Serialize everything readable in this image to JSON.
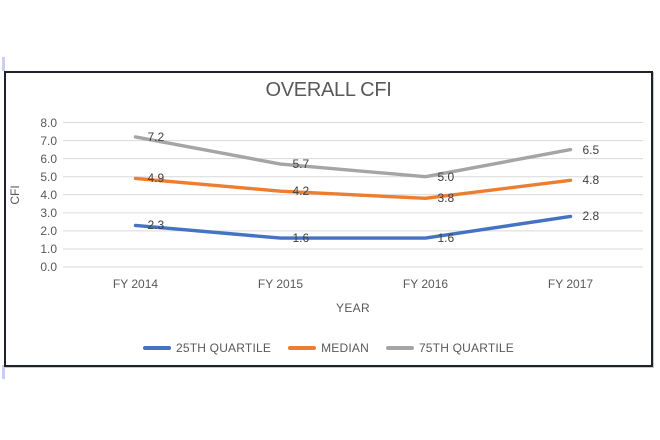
{
  "chart_data": {
    "type": "line",
    "title": "OVERALL CFI",
    "xlabel": "YEAR",
    "ylabel": "CFI",
    "categories": [
      "FY 2014",
      "FY 2015",
      "FY 2016",
      "FY 2017"
    ],
    "series": [
      {
        "name": "25TH QUARTILE",
        "color": "#4472C4",
        "values": [
          2.3,
          1.6,
          1.6,
          2.8
        ]
      },
      {
        "name": "MEDIAN",
        "color": "#ED7D31",
        "values": [
          4.9,
          4.2,
          3.8,
          4.8
        ]
      },
      {
        "name": "75TH QUARTILE",
        "color": "#A5A5A5",
        "values": [
          7.2,
          5.7,
          5.0,
          6.5
        ]
      }
    ],
    "ylim": [
      0.0,
      8.0
    ],
    "ytick_step": 1.0,
    "ytick_labels": [
      "0.0",
      "1.0",
      "2.0",
      "3.0",
      "4.0",
      "5.0",
      "6.0",
      "7.0",
      "8.0"
    ],
    "grid": true,
    "data_labels_visible": true,
    "legend_position": "bottom",
    "colors": {
      "gridline": "#D9D9D9",
      "axis_text": "#595959",
      "data_label_text": "#404040",
      "title_text": "#595959",
      "frame_border": "#20222B"
    }
  }
}
